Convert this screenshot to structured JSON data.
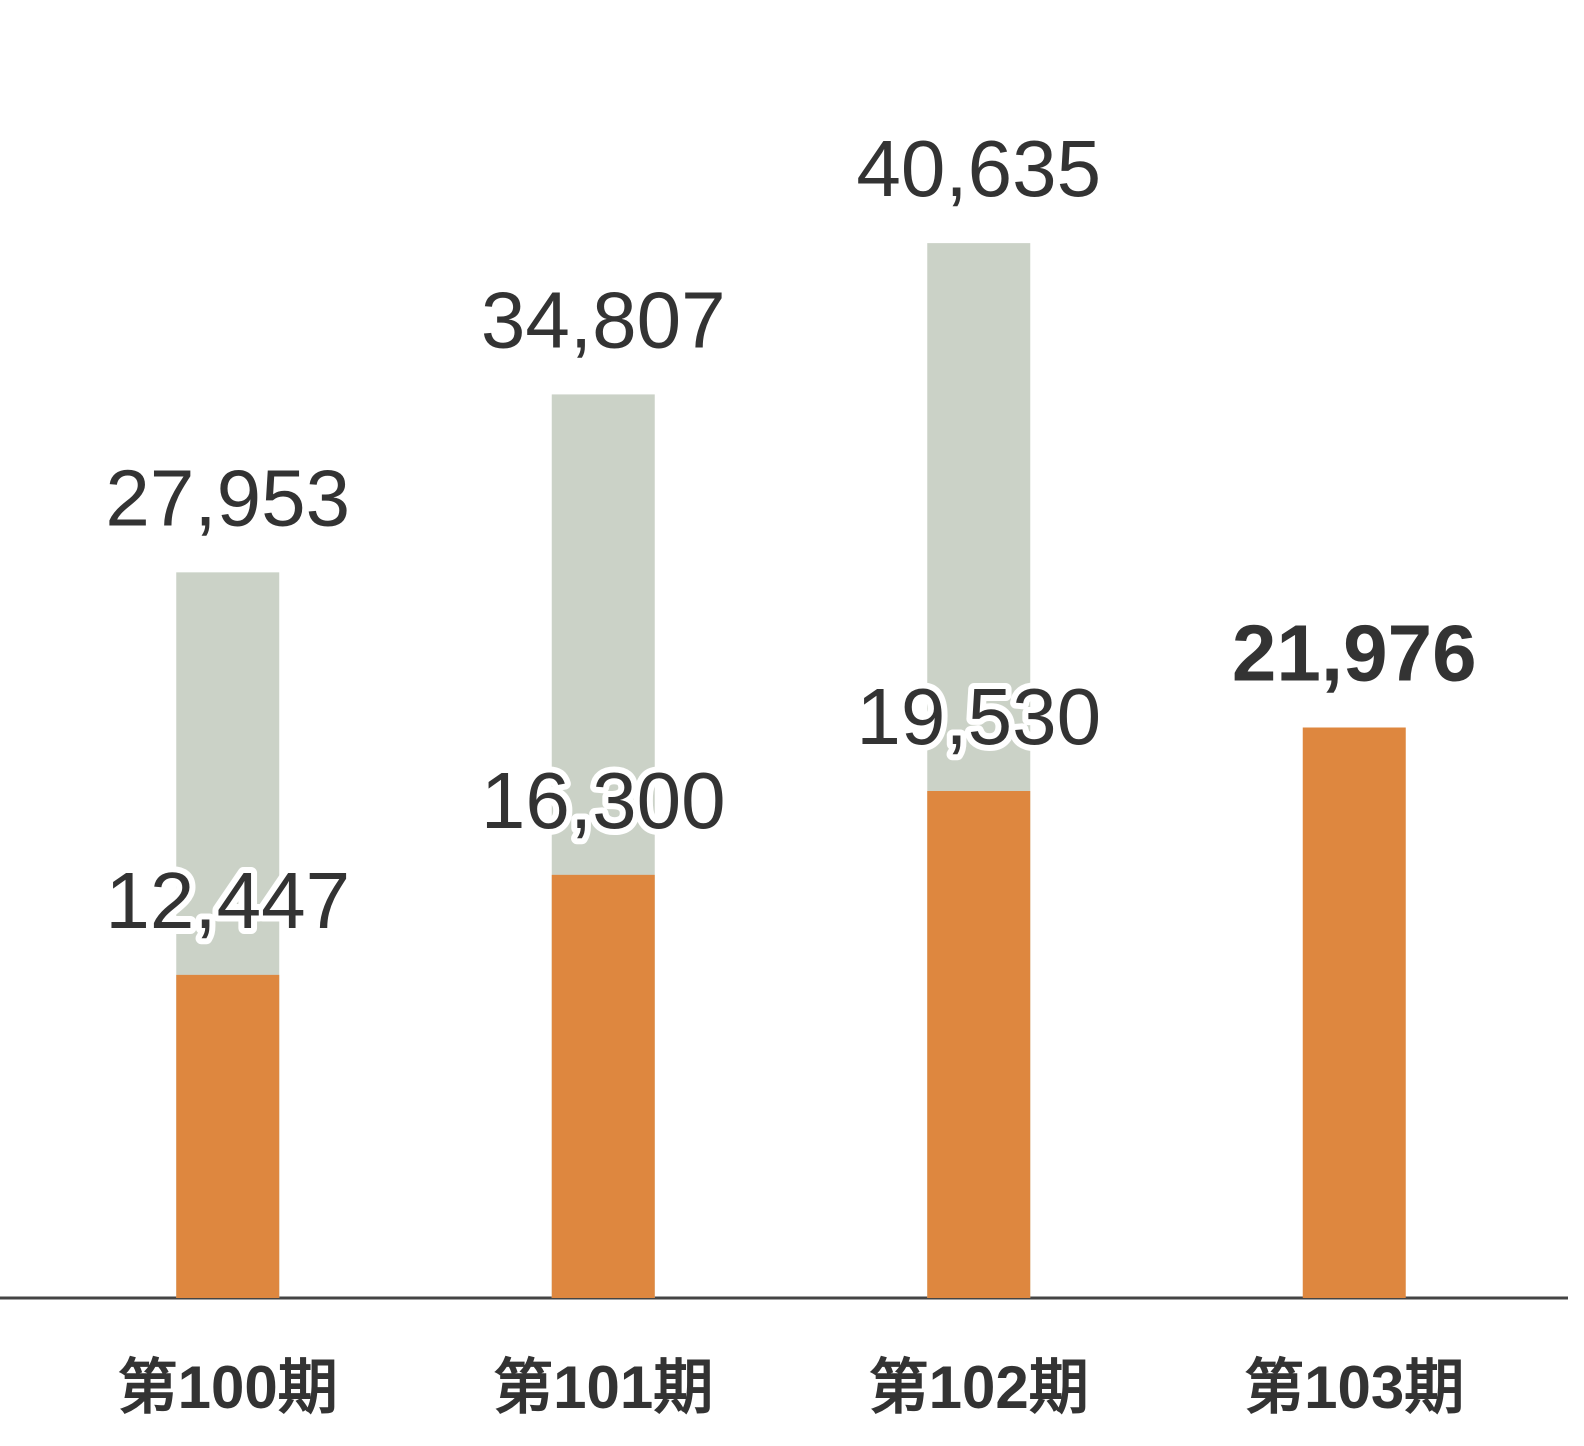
{
  "chart_data": {
    "type": "bar",
    "barmode": "overlay",
    "categories": [
      "第100期",
      "第101期",
      "第102期",
      "第103期"
    ],
    "series": [
      {
        "color": "#cbd2c7",
        "values": [
          27953,
          34807,
          40635,
          null
        ],
        "value_labels": [
          "27,953",
          "34,807",
          "40,635",
          null
        ]
      },
      {
        "color": "#de873f",
        "values": [
          12447,
          16300,
          19530,
          21976
        ],
        "value_labels": [
          "12,447",
          "16,300",
          "19,530",
          "21,976"
        ]
      }
    ],
    "ylim": [
      0,
      50000
    ]
  }
}
